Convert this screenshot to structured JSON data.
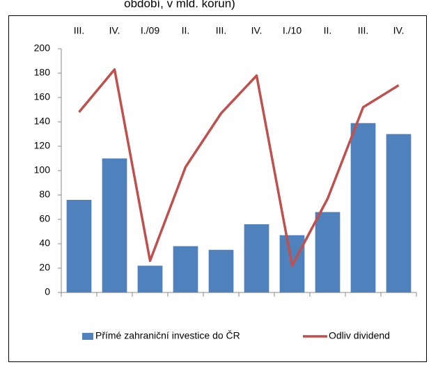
{
  "chart_data": {
    "type": "bar-line",
    "title": "období, v mld. korun)",
    "categories": [
      "III.",
      "IV.",
      "I./09",
      "II.",
      "III.",
      "IV.",
      "I./10",
      "II.",
      "III.",
      "IV."
    ],
    "series": [
      {
        "name": "Přímé zahraniční investice do ČR",
        "type": "bar",
        "color": "#4f81bd",
        "values": [
          76,
          110,
          22,
          38,
          35,
          56,
          47,
          66,
          139,
          130
        ]
      },
      {
        "name": "Odliv dividend",
        "type": "line",
        "color": "#c0504d",
        "values": [
          148,
          183,
          26,
          103,
          147,
          178,
          22,
          77,
          152,
          170
        ]
      }
    ],
    "ylim": [
      0,
      200
    ],
    "yticks": [
      0,
      20,
      40,
      60,
      80,
      100,
      120,
      140,
      160,
      180,
      200
    ]
  }
}
